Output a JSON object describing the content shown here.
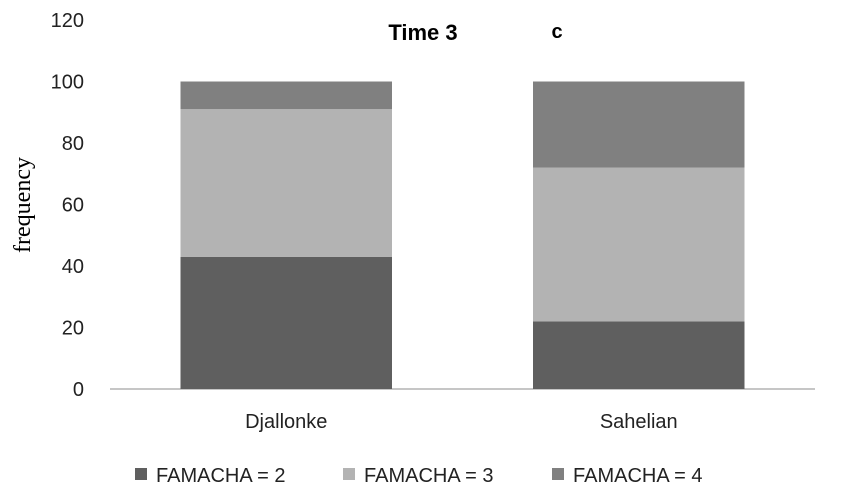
{
  "chart_data": {
    "type": "bar",
    "stacked": true,
    "title": "Time 3",
    "panel_label": "c",
    "xlabel": "",
    "ylabel": "frequency",
    "ylim": [
      0,
      120
    ],
    "yticks": [
      0,
      20,
      40,
      60,
      80,
      100,
      120
    ],
    "categories": [
      "Djallonke",
      "Sahelian"
    ],
    "series": [
      {
        "name": "FAMACHA = 2",
        "values": [
          43,
          22
        ],
        "color": "#5f5f5f"
      },
      {
        "name": "FAMACHA = 3",
        "values": [
          48,
          50
        ],
        "color": "#b3b3b3"
      },
      {
        "name": "FAMACHA = 4",
        "values": [
          9,
          28
        ],
        "color": "#808080"
      }
    ],
    "grid": false,
    "legend": "bottom"
  }
}
